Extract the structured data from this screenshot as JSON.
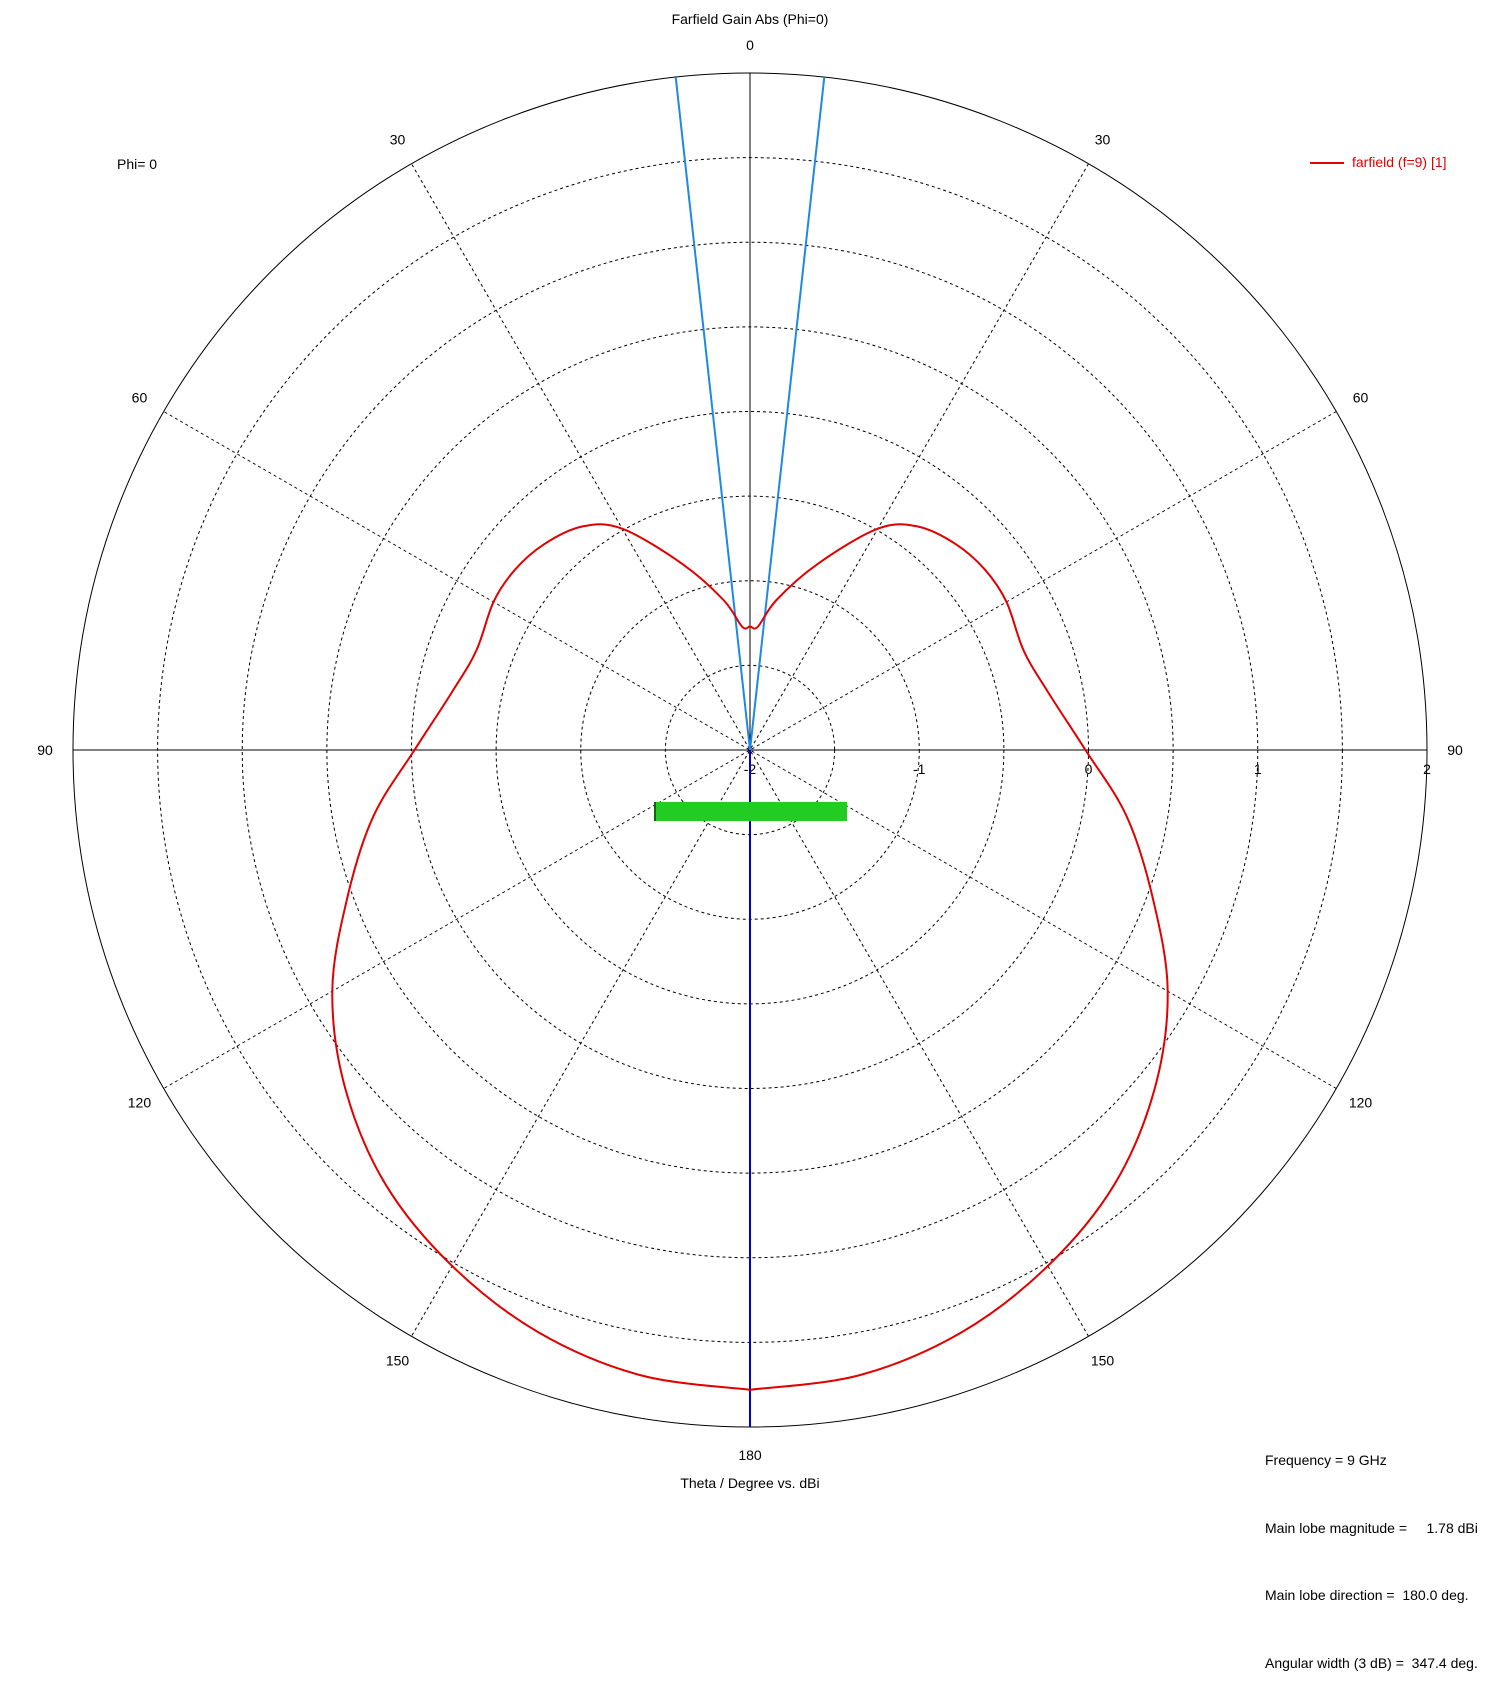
{
  "title": "Farfield Gain Abs (Phi=0)",
  "xlabel": "Theta / Degree vs. dBi",
  "phi_label": "Phi=  0",
  "legend_entry": "farfield (f=9) [1]",
  "colors": {
    "trace": "#e00000",
    "main_lobe": "#0000d0",
    "beamwidth": "#1e88e5",
    "marker": "#22cc22",
    "grid": "#000000"
  },
  "info": {
    "frequency": "Frequency = 9 GHz",
    "main_lobe_magnitude": "Main lobe magnitude =     1.78 dBi",
    "main_lobe_direction": "Main lobe direction =  180.0 deg.",
    "angular_width": "Angular width (3 dB) =  347.4 deg."
  },
  "chart_data": {
    "type": "polar",
    "title": "Farfield Gain Abs (Phi=0)",
    "xlabel": "Theta / Degree vs. dBi",
    "rlim": [
      -2,
      2
    ],
    "radial_ticks": [
      "-2",
      "-1",
      "0",
      "1",
      "2"
    ],
    "angle_ticks": [
      {
        "angle": 0,
        "label": "0"
      },
      {
        "angle": 30,
        "label": "30"
      },
      {
        "angle": 60,
        "label": "60"
      },
      {
        "angle": 90,
        "label": "90"
      },
      {
        "angle": 120,
        "label": "120"
      },
      {
        "angle": 150,
        "label": "150"
      },
      {
        "angle": 180,
        "label": "180"
      },
      {
        "angle": -150,
        "label": "150"
      },
      {
        "angle": -120,
        "label": "120"
      },
      {
        "angle": -90,
        "label": "90"
      },
      {
        "angle": -60,
        "label": "60"
      },
      {
        "angle": -30,
        "label": "30"
      }
    ],
    "grid": true,
    "legend_position": "top-right",
    "series": [
      {
        "name": "farfield (f=9) [1]",
        "theta_deg": [
          0,
          3.6,
          10,
          20,
          30,
          36.8,
          45,
          52.5,
          60,
          70,
          78.7,
          89.9,
          100,
          110,
          120,
          130,
          140,
          150,
          160,
          170,
          180
        ],
        "gain_dBi": [
          -1.27,
          -1.27,
          -1.1,
          -0.83,
          -0.49,
          -0.35,
          -0.28,
          -0.25,
          -0.25,
          -0.28,
          -0.21,
          -0.02,
          0.26,
          0.53,
          0.85,
          1.12,
          1.35,
          1.52,
          1.66,
          1.75,
          1.78
        ]
      }
    ],
    "main_lobe_direction_deg": 180.0,
    "beamwidth_lines_deg": [
      6.3,
      -6.3
    ]
  }
}
